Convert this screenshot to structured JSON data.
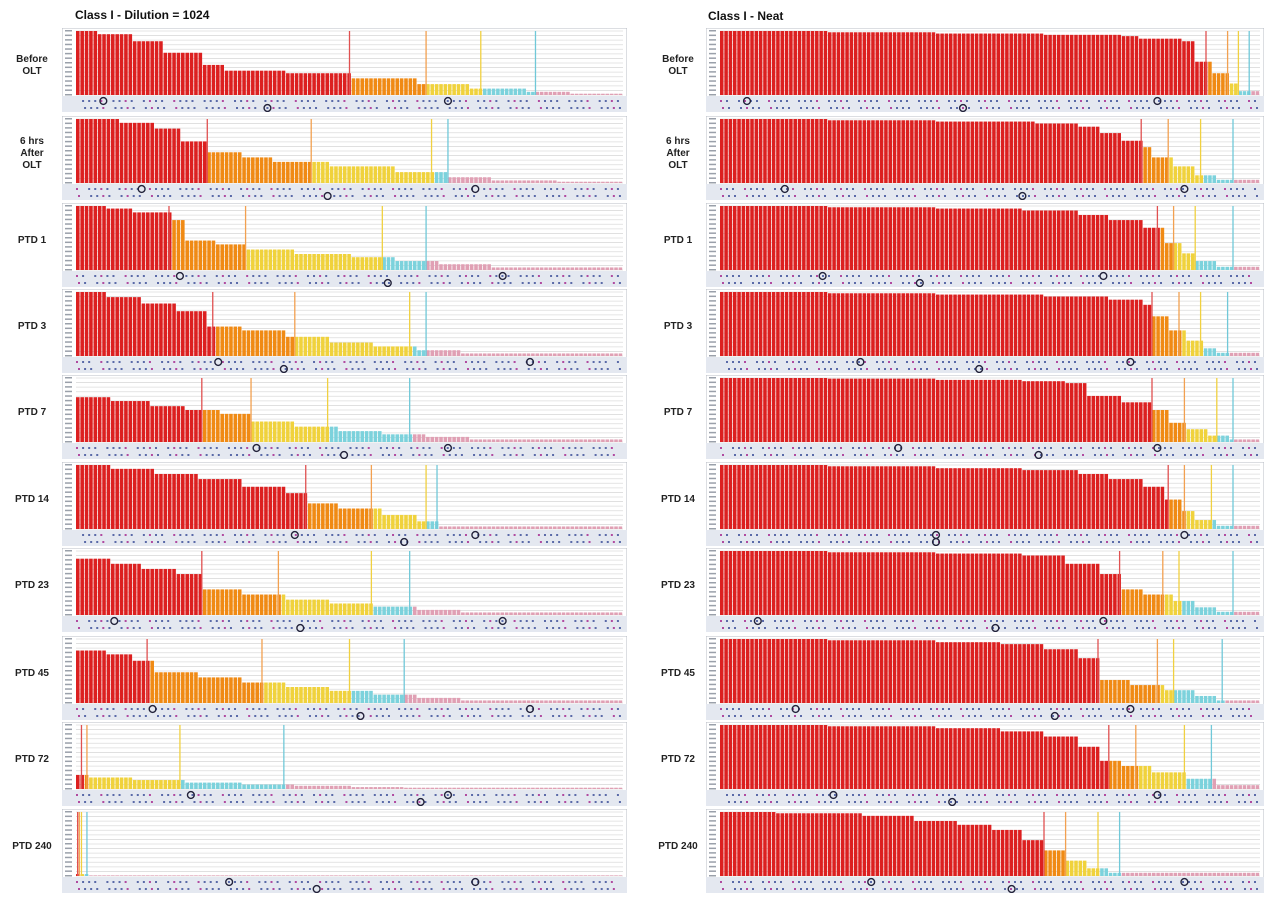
{
  "figure": {
    "left_title": "Class I  -  Dilution = 1024",
    "right_title": "Class I -  Neat",
    "row_labels": [
      [
        "Before",
        "OLT"
      ],
      [
        "6 hrs",
        "After",
        "OLT"
      ],
      [
        "PTD 1"
      ],
      [
        "PTD 3"
      ],
      [
        "PTD 7"
      ],
      [
        "PTD 14"
      ],
      [
        "PTD 23"
      ],
      [
        "PTD 45"
      ],
      [
        "PTD 72"
      ],
      [
        "PTD 240"
      ]
    ]
  },
  "colors": {
    "red": "#dc2020",
    "orange": "#f08a14",
    "yellow": "#f0d23c",
    "cyan": "#7cd2dc",
    "pink": "#e0a0b4",
    "grid": "#dcdcdc",
    "strip": "#e4e8f0",
    "circle": "#22223a"
  },
  "chart_data": [
    {
      "type": "bar",
      "title": "Class I  -  Dilution = 1024",
      "panels": [
        {
          "label": "Before OLT",
          "levels": [
            [
              0,
              1.0
            ],
            [
              0.04,
              0.95
            ],
            [
              0.1,
              0.84
            ],
            [
              0.16,
              0.66
            ],
            [
              0.23,
              0.47
            ],
            [
              0.27,
              0.38
            ],
            [
              0.38,
              0.34
            ],
            [
              0.5,
              0.26
            ],
            [
              0.62,
              0.17
            ],
            [
              0.72,
              0.1
            ],
            [
              0.82,
              0.05
            ],
            [
              0.9,
              0.02
            ]
          ],
          "red_end": 0.5,
          "orange_end": 0.64,
          "yellow_end": 0.74,
          "cyan_end": 0.84,
          "n": 125
        },
        {
          "label": "6 hrs After OLT",
          "levels": [
            [
              0,
              1.0
            ],
            [
              0.08,
              0.94
            ],
            [
              0.14,
              0.85
            ],
            [
              0.19,
              0.65
            ],
            [
              0.24,
              0.48
            ],
            [
              0.3,
              0.4
            ],
            [
              0.36,
              0.33
            ],
            [
              0.46,
              0.26
            ],
            [
              0.58,
              0.17
            ],
            [
              0.68,
              0.09
            ],
            [
              0.76,
              0.04
            ],
            [
              0.88,
              0.02
            ]
          ],
          "red_end": 0.24,
          "orange_end": 0.43,
          "yellow_end": 0.65,
          "cyan_end": 0.68,
          "n": 125
        },
        {
          "label": "PTD 1",
          "levels": [
            [
              0,
              1.0
            ],
            [
              0.05,
              0.96
            ],
            [
              0.1,
              0.9
            ],
            [
              0.17,
              0.78
            ],
            [
              0.2,
              0.46
            ],
            [
              0.25,
              0.4
            ],
            [
              0.31,
              0.32
            ],
            [
              0.4,
              0.25
            ],
            [
              0.5,
              0.2
            ],
            [
              0.58,
              0.14
            ],
            [
              0.66,
              0.09
            ],
            [
              0.76,
              0.04
            ]
          ],
          "red_end": 0.17,
          "orange_end": 0.31,
          "yellow_end": 0.56,
          "cyan_end": 0.64,
          "n": 125
        },
        {
          "label": "PTD 3",
          "levels": [
            [
              0,
              1.0
            ],
            [
              0.05,
              0.92
            ],
            [
              0.12,
              0.82
            ],
            [
              0.18,
              0.7
            ],
            [
              0.24,
              0.46
            ],
            [
              0.3,
              0.4
            ],
            [
              0.38,
              0.3
            ],
            [
              0.46,
              0.21
            ],
            [
              0.54,
              0.15
            ],
            [
              0.62,
              0.09
            ],
            [
              0.7,
              0.04
            ]
          ],
          "red_end": 0.25,
          "orange_end": 0.4,
          "yellow_end": 0.61,
          "cyan_end": 0.64,
          "n": 125
        },
        {
          "label": "PTD 7",
          "levels": [
            [
              0,
              0.7
            ],
            [
              0.06,
              0.64
            ],
            [
              0.13,
              0.56
            ],
            [
              0.2,
              0.5
            ],
            [
              0.26,
              0.44
            ],
            [
              0.32,
              0.32
            ],
            [
              0.4,
              0.24
            ],
            [
              0.48,
              0.17
            ],
            [
              0.56,
              0.12
            ],
            [
              0.64,
              0.08
            ],
            [
              0.72,
              0.04
            ]
          ],
          "red_end": 0.23,
          "orange_end": 0.32,
          "yellow_end": 0.46,
          "cyan_end": 0.61,
          "n": 125
        },
        {
          "label": "PTD 14",
          "levels": [
            [
              0,
              1.0
            ],
            [
              0.06,
              0.94
            ],
            [
              0.14,
              0.86
            ],
            [
              0.22,
              0.78
            ],
            [
              0.3,
              0.66
            ],
            [
              0.38,
              0.56
            ],
            [
              0.42,
              0.4
            ],
            [
              0.48,
              0.32
            ],
            [
              0.56,
              0.22
            ],
            [
              0.62,
              0.12
            ],
            [
              0.66,
              0.04
            ]
          ],
          "red_end": 0.42,
          "orange_end": 0.54,
          "yellow_end": 0.64,
          "cyan_end": 0.66,
          "n": 125
        },
        {
          "label": "PTD 23",
          "levels": [
            [
              0,
              0.88
            ],
            [
              0.06,
              0.8
            ],
            [
              0.12,
              0.72
            ],
            [
              0.18,
              0.64
            ],
            [
              0.23,
              0.4
            ],
            [
              0.3,
              0.32
            ],
            [
              0.38,
              0.24
            ],
            [
              0.46,
              0.18
            ],
            [
              0.54,
              0.13
            ],
            [
              0.62,
              0.08
            ],
            [
              0.7,
              0.04
            ]
          ],
          "red_end": 0.23,
          "orange_end": 0.37,
          "yellow_end": 0.54,
          "cyan_end": 0.61,
          "n": 125
        },
        {
          "label": "PTD 45",
          "levels": [
            [
              0,
              0.82
            ],
            [
              0.05,
              0.76
            ],
            [
              0.1,
              0.66
            ],
            [
              0.14,
              0.48
            ],
            [
              0.22,
              0.4
            ],
            [
              0.3,
              0.32
            ],
            [
              0.38,
              0.25
            ],
            [
              0.46,
              0.19
            ],
            [
              0.54,
              0.13
            ],
            [
              0.62,
              0.08
            ],
            [
              0.7,
              0.04
            ]
          ],
          "red_end": 0.13,
          "orange_end": 0.34,
          "yellow_end": 0.5,
          "cyan_end": 0.6,
          "n": 125
        },
        {
          "label": "PTD 72",
          "levels": [
            [
              0,
              0.22
            ],
            [
              0.02,
              0.18
            ],
            [
              0.1,
              0.14
            ],
            [
              0.2,
              0.1
            ],
            [
              0.3,
              0.07
            ],
            [
              0.4,
              0.05
            ],
            [
              0.5,
              0.03
            ],
            [
              0.6,
              0.02
            ]
          ],
          "red_end": 0.01,
          "orange_end": 0.02,
          "yellow_end": 0.19,
          "cyan_end": 0.38,
          "n": 125
        },
        {
          "label": "PTD 240",
          "levels": [
            [
              0,
              0.03
            ],
            [
              0.02,
              0.01
            ]
          ],
          "red_end": 0.003,
          "orange_end": 0.006,
          "yellow_end": 0.01,
          "cyan_end": 0.02,
          "n": 125
        }
      ]
    },
    {
      "type": "bar",
      "title": "Class I -  Neat",
      "panels": [
        {
          "label": "Before OLT",
          "levels": [
            [
              0,
              1.0
            ],
            [
              0.2,
              0.98
            ],
            [
              0.4,
              0.96
            ],
            [
              0.6,
              0.94
            ],
            [
              0.74,
              0.92
            ],
            [
              0.77,
              0.88
            ],
            [
              0.85,
              0.84
            ],
            [
              0.88,
              0.52
            ],
            [
              0.91,
              0.34
            ],
            [
              0.94,
              0.18
            ],
            [
              0.96,
              0.06
            ]
          ],
          "red_end": 0.9,
          "orange_end": 0.94,
          "yellow_end": 0.96,
          "cyan_end": 0.98,
          "n": 125
        },
        {
          "label": "6 hrs After OLT",
          "levels": [
            [
              0,
              1.0
            ],
            [
              0.2,
              0.98
            ],
            [
              0.4,
              0.96
            ],
            [
              0.58,
              0.93
            ],
            [
              0.66,
              0.88
            ],
            [
              0.7,
              0.78
            ],
            [
              0.74,
              0.66
            ],
            [
              0.78,
              0.56
            ],
            [
              0.8,
              0.4
            ],
            [
              0.84,
              0.26
            ],
            [
              0.88,
              0.12
            ],
            [
              0.92,
              0.05
            ]
          ],
          "red_end": 0.78,
          "orange_end": 0.83,
          "yellow_end": 0.89,
          "cyan_end": 0.95,
          "n": 125
        },
        {
          "label": "PTD 1",
          "levels": [
            [
              0,
              1.0
            ],
            [
              0.2,
              0.98
            ],
            [
              0.4,
              0.96
            ],
            [
              0.56,
              0.93
            ],
            [
              0.66,
              0.86
            ],
            [
              0.72,
              0.78
            ],
            [
              0.78,
              0.66
            ],
            [
              0.82,
              0.42
            ],
            [
              0.85,
              0.26
            ],
            [
              0.88,
              0.14
            ],
            [
              0.92,
              0.05
            ]
          ],
          "red_end": 0.81,
          "orange_end": 0.84,
          "yellow_end": 0.88,
          "cyan_end": 0.95,
          "n": 125
        },
        {
          "label": "PTD 3",
          "levels": [
            [
              0,
              1.0
            ],
            [
              0.2,
              0.98
            ],
            [
              0.4,
              0.96
            ],
            [
              0.6,
              0.93
            ],
            [
              0.72,
              0.88
            ],
            [
              0.78,
              0.8
            ],
            [
              0.8,
              0.62
            ],
            [
              0.83,
              0.4
            ],
            [
              0.86,
              0.24
            ],
            [
              0.89,
              0.12
            ],
            [
              0.92,
              0.05
            ]
          ],
          "red_end": 0.8,
          "orange_end": 0.85,
          "yellow_end": 0.89,
          "cyan_end": 0.94,
          "n": 125
        },
        {
          "label": "PTD 7",
          "levels": [
            [
              0,
              1.0
            ],
            [
              0.2,
              0.99
            ],
            [
              0.4,
              0.97
            ],
            [
              0.56,
              0.95
            ],
            [
              0.64,
              0.92
            ],
            [
              0.68,
              0.72
            ],
            [
              0.74,
              0.62
            ],
            [
              0.8,
              0.5
            ],
            [
              0.83,
              0.3
            ],
            [
              0.86,
              0.2
            ],
            [
              0.9,
              0.1
            ],
            [
              0.94,
              0.04
            ]
          ],
          "red_end": 0.8,
          "orange_end": 0.86,
          "yellow_end": 0.92,
          "cyan_end": 0.95,
          "n": 125
        },
        {
          "label": "PTD 14",
          "levels": [
            [
              0,
              1.0
            ],
            [
              0.2,
              0.98
            ],
            [
              0.4,
              0.95
            ],
            [
              0.56,
              0.92
            ],
            [
              0.66,
              0.86
            ],
            [
              0.72,
              0.78
            ],
            [
              0.78,
              0.66
            ],
            [
              0.82,
              0.46
            ],
            [
              0.85,
              0.28
            ],
            [
              0.88,
              0.14
            ],
            [
              0.92,
              0.05
            ]
          ],
          "red_end": 0.83,
          "orange_end": 0.86,
          "yellow_end": 0.91,
          "cyan_end": 0.95,
          "n": 125
        },
        {
          "label": "PTD 23",
          "levels": [
            [
              0,
              1.0
            ],
            [
              0.2,
              0.98
            ],
            [
              0.4,
              0.96
            ],
            [
              0.56,
              0.93
            ],
            [
              0.64,
              0.8
            ],
            [
              0.7,
              0.64
            ],
            [
              0.74,
              0.4
            ],
            [
              0.78,
              0.32
            ],
            [
              0.84,
              0.22
            ],
            [
              0.88,
              0.12
            ],
            [
              0.92,
              0.05
            ]
          ],
          "red_end": 0.74,
          "orange_end": 0.82,
          "yellow_end": 0.85,
          "cyan_end": 0.95,
          "n": 125
        },
        {
          "label": "PTD 45",
          "levels": [
            [
              0,
              1.0
            ],
            [
              0.2,
              0.98
            ],
            [
              0.4,
              0.95
            ],
            [
              0.52,
              0.92
            ],
            [
              0.6,
              0.84
            ],
            [
              0.66,
              0.7
            ],
            [
              0.7,
              0.36
            ],
            [
              0.76,
              0.28
            ],
            [
              0.82,
              0.2
            ],
            [
              0.88,
              0.11
            ],
            [
              0.92,
              0.04
            ]
          ],
          "red_end": 0.7,
          "orange_end": 0.81,
          "yellow_end": 0.84,
          "cyan_end": 0.93,
          "n": 125
        },
        {
          "label": "PTD 72",
          "levels": [
            [
              0,
              1.0
            ],
            [
              0.2,
              0.98
            ],
            [
              0.4,
              0.95
            ],
            [
              0.52,
              0.9
            ],
            [
              0.6,
              0.82
            ],
            [
              0.66,
              0.66
            ],
            [
              0.7,
              0.44
            ],
            [
              0.74,
              0.36
            ],
            [
              0.8,
              0.26
            ],
            [
              0.86,
              0.16
            ],
            [
              0.92,
              0.06
            ]
          ],
          "red_end": 0.72,
          "orange_end": 0.77,
          "yellow_end": 0.86,
          "cyan_end": 0.91,
          "n": 125
        },
        {
          "label": "PTD 240",
          "levels": [
            [
              0,
              1.0
            ],
            [
              0.1,
              0.98
            ],
            [
              0.26,
              0.94
            ],
            [
              0.36,
              0.86
            ],
            [
              0.44,
              0.8
            ],
            [
              0.5,
              0.72
            ],
            [
              0.56,
              0.56
            ],
            [
              0.6,
              0.4
            ],
            [
              0.64,
              0.24
            ],
            [
              0.68,
              0.12
            ],
            [
              0.72,
              0.05
            ]
          ],
          "red_end": 0.6,
          "orange_end": 0.64,
          "yellow_end": 0.7,
          "cyan_end": 0.74,
          "n": 125
        }
      ]
    }
  ]
}
